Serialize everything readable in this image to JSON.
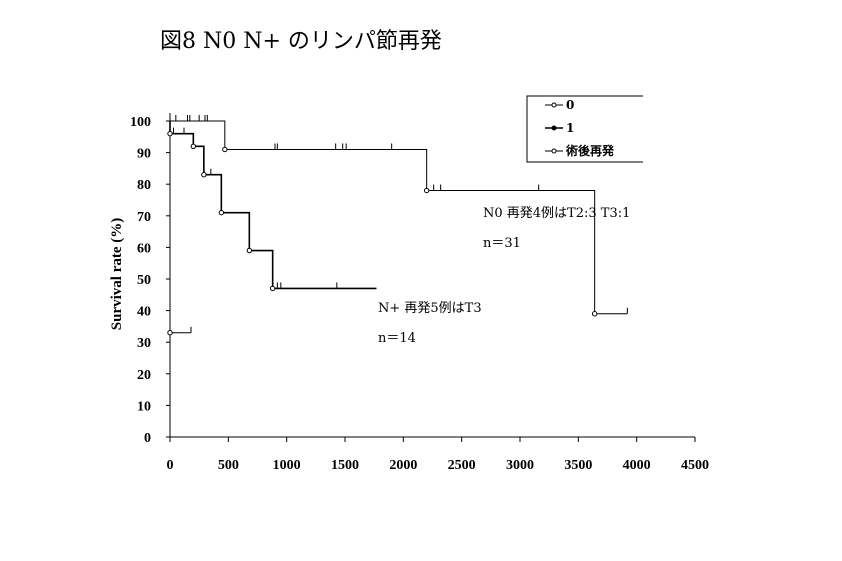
{
  "chart_data": {
    "type": "line",
    "title": "図8  N0  N+  のリンパ節再発",
    "ylabel": "Survival rate (%)",
    "xlabel": "",
    "xlim": [
      0,
      4500
    ],
    "ylim": [
      0,
      100
    ],
    "xticks": [
      0,
      500,
      1000,
      1500,
      2000,
      2500,
      3000,
      3500,
      4000,
      4500
    ],
    "yticks": [
      0,
      10,
      20,
      30,
      40,
      50,
      60,
      70,
      80,
      90,
      100
    ],
    "legend": {
      "position": "top-right",
      "entries": [
        "0",
        "1",
        "術後再発"
      ]
    },
    "annotations": [
      {
        "lines": [
          "N0  再発4例はT2:3   T3:1",
          "n＝31"
        ]
      },
      {
        "lines": [
          "N+  再発5例はT3",
          "n＝14"
        ]
      }
    ],
    "series": [
      {
        "name": "0",
        "color": "#000000",
        "step": [
          [
            0,
            100
          ],
          [
            470,
            100
          ],
          [
            470,
            91
          ],
          [
            2200,
            91
          ],
          [
            2200,
            78
          ],
          [
            3640,
            78
          ],
          [
            3640,
            39
          ],
          [
            3920,
            39
          ]
        ],
        "censor": [
          [
            50,
            100
          ],
          [
            150,
            100
          ],
          [
            170,
            100
          ],
          [
            250,
            100
          ],
          [
            300,
            100
          ],
          [
            320,
            100
          ],
          [
            900,
            91
          ],
          [
            920,
            91
          ],
          [
            1420,
            91
          ],
          [
            1480,
            91
          ],
          [
            1510,
            91
          ],
          [
            1900,
            91
          ],
          [
            2260,
            78
          ],
          [
            2320,
            78
          ],
          [
            3160,
            78
          ],
          [
            3920,
            39
          ]
        ]
      },
      {
        "name": "1",
        "color": "#000000",
        "step": [
          [
            0,
            100
          ],
          [
            0,
            96
          ],
          [
            200,
            96
          ],
          [
            200,
            92
          ],
          [
            290,
            92
          ],
          [
            290,
            83
          ],
          [
            440,
            83
          ],
          [
            440,
            71
          ],
          [
            680,
            71
          ],
          [
            680,
            59
          ],
          [
            880,
            59
          ],
          [
            880,
            47
          ],
          [
            1770,
            47
          ]
        ],
        "censor": [
          [
            30,
            96
          ],
          [
            120,
            96
          ],
          [
            350,
            83
          ],
          [
            920,
            47
          ],
          [
            950,
            47
          ],
          [
            1430,
            47
          ]
        ]
      },
      {
        "name": "術後再発",
        "color": "#000000",
        "step": [
          [
            0,
            33
          ],
          [
            180,
            33
          ]
        ],
        "censor": [
          [
            180,
            33
          ]
        ]
      }
    ],
    "event_points": [
      [
        470,
        91
      ],
      [
        2200,
        78
      ],
      [
        3640,
        39
      ],
      [
        0,
        33
      ],
      [
        200,
        92
      ],
      [
        290,
        83
      ],
      [
        440,
        71
      ],
      [
        680,
        59
      ],
      [
        880,
        47
      ],
      [
        0,
        96
      ]
    ]
  }
}
